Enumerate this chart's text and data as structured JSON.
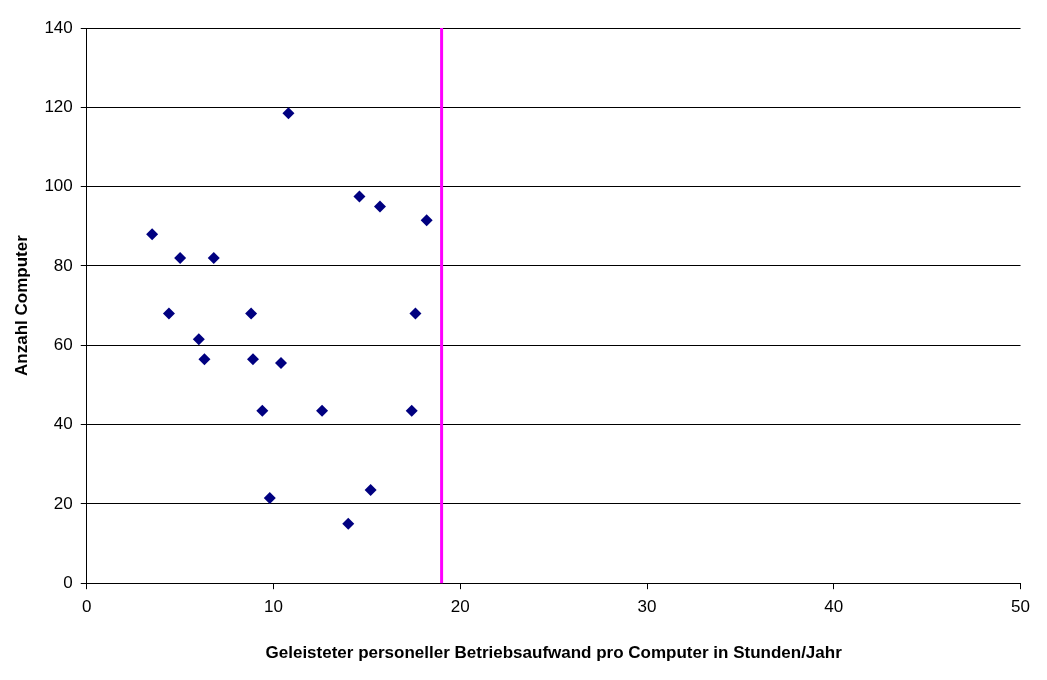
{
  "chart_data": {
    "type": "scatter",
    "xlabel": "Geleisteter personeller Betriebsaufwand pro Computer in Stunden/Jahr",
    "ylabel": "Anzahl Computer",
    "x": [
      3.5,
      4.4,
      5.0,
      6.0,
      6.3,
      6.8,
      8.8,
      8.9,
      9.4,
      9.8,
      10.4,
      10.8,
      12.6,
      14.0,
      14.6,
      15.2,
      15.7,
      17.4,
      17.6,
      18.2
    ],
    "series": [
      {
        "color": "#000080",
        "values": [
          88,
          68,
          82,
          61.5,
          56.5,
          82,
          68,
          56.5,
          43.5,
          21.5,
          55.5,
          118.5,
          43.5,
          15,
          97.5,
          23.5,
          95,
          43.5,
          68,
          91.5
        ]
      }
    ],
    "xlim": [
      0,
      50
    ],
    "xticks": [
      0,
      10,
      20,
      30,
      40,
      50
    ],
    "ylim": [
      0,
      140
    ],
    "yticks": [
      0,
      20,
      40,
      60,
      80,
      100,
      120,
      140
    ],
    "grid": "y",
    "marker": "diamond",
    "legend": false,
    "ref_lines": [
      {
        "axis": "x",
        "value": 19,
        "color": "#ff00ff"
      }
    ]
  }
}
